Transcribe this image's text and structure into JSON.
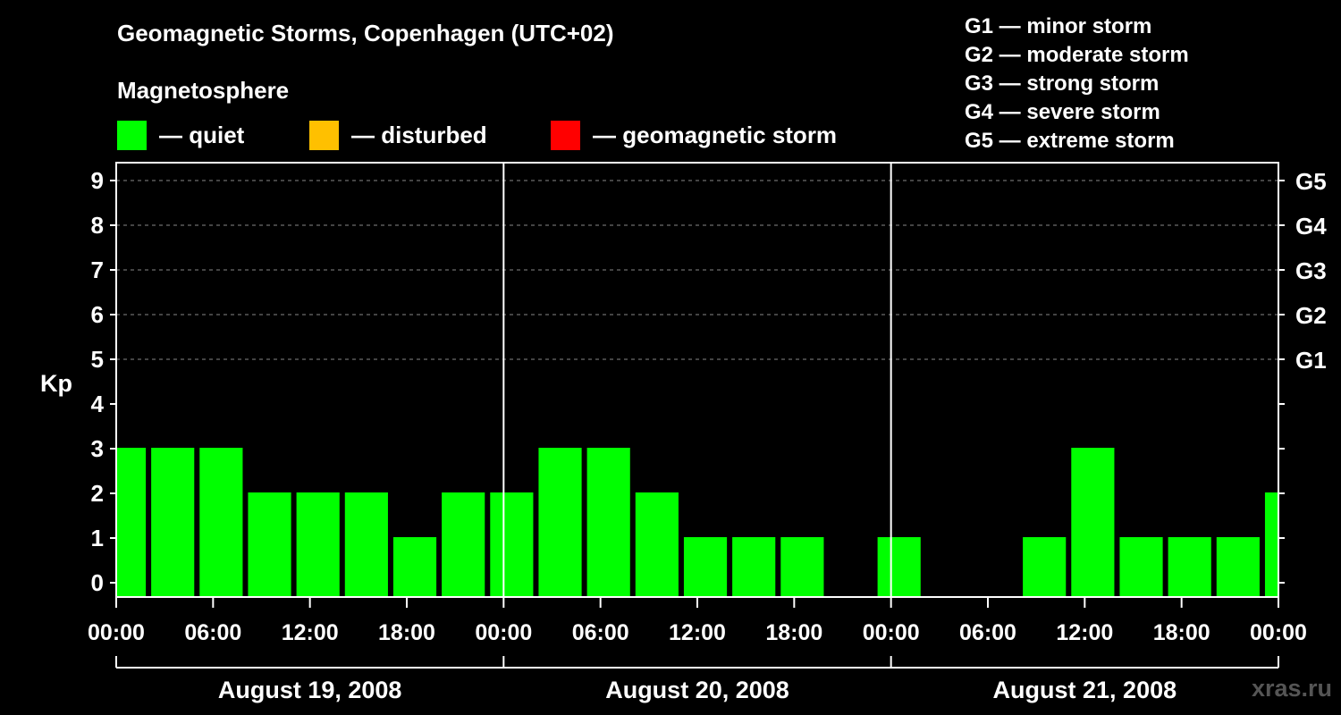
{
  "chart_data": {
    "type": "bar",
    "title": "Geomagnetic Storms, Copenhagen (UTC+02)",
    "ylabel": "Kp",
    "ylim": [
      0,
      9
    ],
    "yticks": [
      "0",
      "1",
      "2",
      "3",
      "4",
      "5",
      "6",
      "7",
      "8",
      "9"
    ],
    "right_axis_labels": [
      {
        "kp": 5,
        "label": "G1"
      },
      {
        "kp": 6,
        "label": "G2"
      },
      {
        "kp": 7,
        "label": "G3"
      },
      {
        "kp": 8,
        "label": "G4"
      },
      {
        "kp": 9,
        "label": "G5"
      }
    ],
    "x_tick_labels": [
      "00:00",
      "06:00",
      "12:00",
      "18:00",
      "00:00",
      "06:00",
      "12:00",
      "18:00",
      "00:00",
      "06:00",
      "12:00",
      "18:00",
      "00:00"
    ],
    "days": [
      "August 19, 2008",
      "August 20, 2008",
      "August 21, 2008"
    ],
    "bar_interval_hours": 3,
    "bar_start_offset_hours": -1,
    "x_range_hours": [
      0,
      72
    ],
    "values": [
      3,
      3,
      3,
      2,
      2,
      2,
      1,
      2,
      2,
      3,
      3,
      2,
      1,
      1,
      1,
      0,
      1,
      0,
      0,
      1,
      3,
      1,
      1,
      1,
      2
    ],
    "status_color": "#00ff00"
  },
  "header": {
    "subtitle": "Magnetosphere",
    "legend": [
      {
        "label": "— quiet",
        "color": "#00ff00"
      },
      {
        "label": "— disturbed",
        "color": "#ffc000"
      },
      {
        "label": "— geomagnetic storm",
        "color": "#ff0000"
      }
    ]
  },
  "storm_scale": [
    "G1 — minor storm",
    "G2 — moderate storm",
    "G3 — strong storm",
    "G4 — severe storm",
    "G5 — extreme storm"
  ],
  "watermark": "xras.ru"
}
